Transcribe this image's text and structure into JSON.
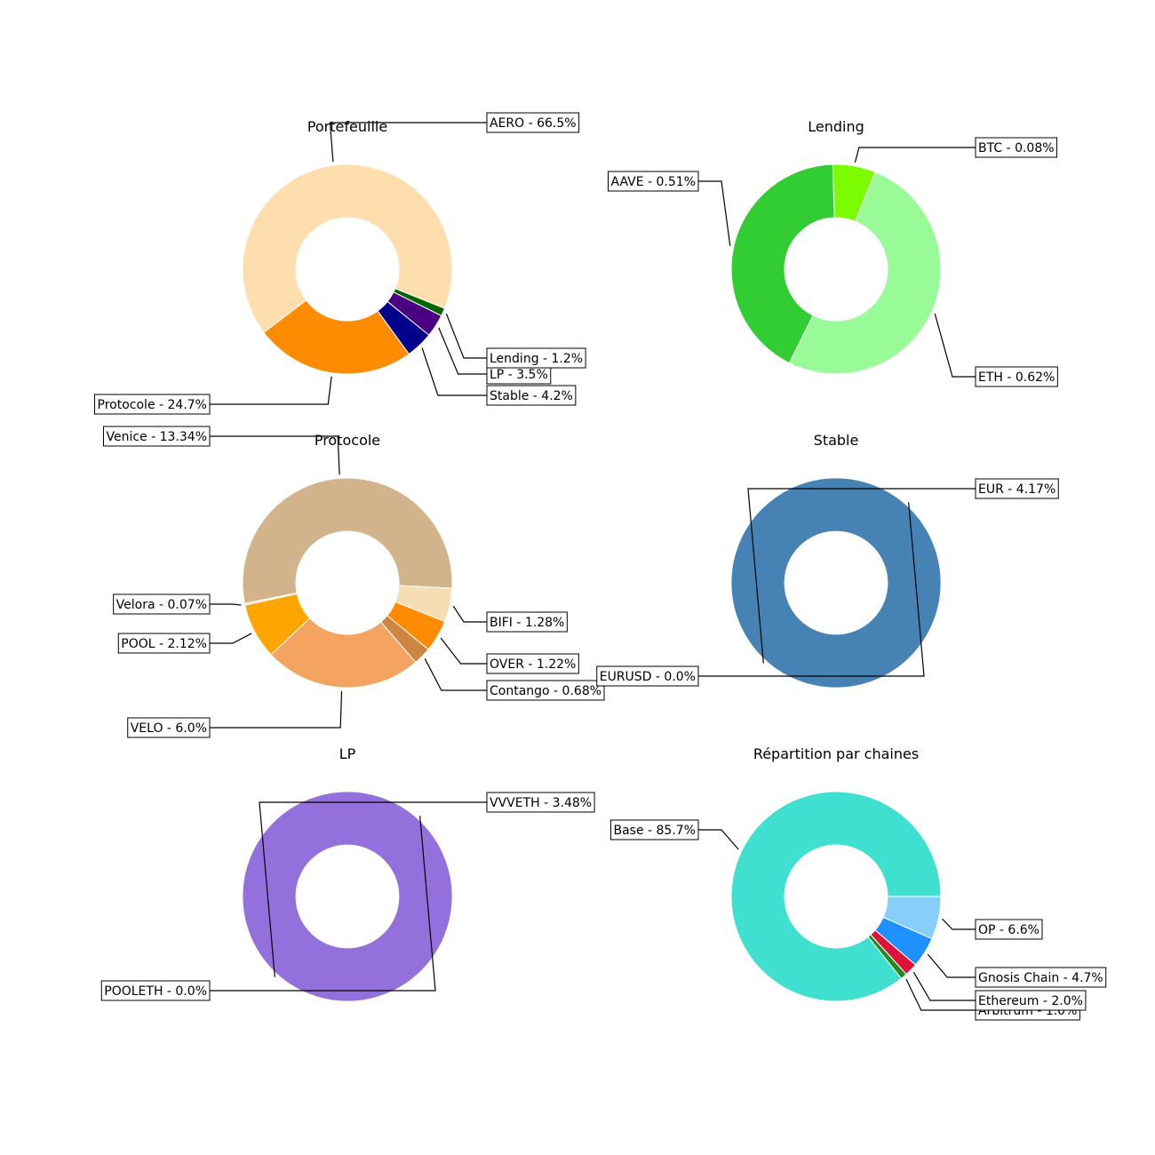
{
  "chart_data": [
    {
      "type": "pie",
      "title": "Portefeuille",
      "slices": [
        {
          "label": "AERO - 66.5%",
          "value": 66.5,
          "color": "#FFDEAD"
        },
        {
          "label": "Protocole - 24.7%",
          "value": 24.7,
          "color": "#FF8C00"
        },
        {
          "label": "Stable - 4.2%",
          "value": 4.2,
          "color": "#00008B"
        },
        {
          "label": "LP - 3.5%",
          "value": 3.5,
          "color": "#4B0082"
        },
        {
          "label": "Lending - 1.2%",
          "value": 1.2,
          "color": "#006400"
        }
      ]
    },
    {
      "type": "pie",
      "title": "Lending",
      "slices": [
        {
          "label": "BTC - 0.08%",
          "value": 0.08,
          "color": "#7CFC00"
        },
        {
          "label": "AAVE - 0.51%",
          "value": 0.51,
          "color": "#32CD32"
        },
        {
          "label": "ETH - 0.62%",
          "value": 0.62,
          "color": "#98FB98"
        }
      ]
    },
    {
      "type": "pie",
      "title": "Protocole",
      "slices": [
        {
          "label": "Venice - 13.34%",
          "value": 13.34,
          "color": "#D2B48C"
        },
        {
          "label": "Velora - 0.07%",
          "value": 0.07,
          "color": "#F5DEB3"
        },
        {
          "label": "POOL - 2.12%",
          "value": 2.12,
          "color": "#FFA500"
        },
        {
          "label": "VELO - 6.0%",
          "value": 6.0,
          "color": "#F4A460"
        },
        {
          "label": "Contango - 0.68%",
          "value": 0.68,
          "color": "#CD853F"
        },
        {
          "label": "OVER - 1.22%",
          "value": 1.22,
          "color": "#FF8C00"
        },
        {
          "label": "BIFI - 1.28%",
          "value": 1.28,
          "color": "#F5DEB3"
        }
      ]
    },
    {
      "type": "pie",
      "title": "Stable",
      "slices": [
        {
          "label": "EUR - 4.17%",
          "value": 4.17,
          "color": "#4682B4"
        },
        {
          "label": "EURUSD - 0.0%",
          "value": 0.0,
          "color": "#4682B4"
        }
      ]
    },
    {
      "type": "pie",
      "title": "LP",
      "slices": [
        {
          "label": "VVVETH - 3.48%",
          "value": 3.48,
          "color": "#9370DB"
        },
        {
          "label": "POOLETH - 0.0%",
          "value": 0.0,
          "color": "#9370DB"
        }
      ]
    },
    {
      "type": "pie",
      "title": "Répartition par chaines",
      "slices": [
        {
          "label": "Base - 85.7%",
          "value": 85.7,
          "color": "#40E0D0"
        },
        {
          "label": "Arbitrum - 1.0%",
          "value": 1.0,
          "color": "#228B22"
        },
        {
          "label": "Ethereum - 2.0%",
          "value": 2.0,
          "color": "#DC143C"
        },
        {
          "label": "Gnosis Chain - 4.7%",
          "value": 4.7,
          "color": "#1E90FF"
        },
        {
          "label": "OP - 6.6%",
          "value": 6.6,
          "color": "#87CEFA"
        }
      ]
    }
  ]
}
